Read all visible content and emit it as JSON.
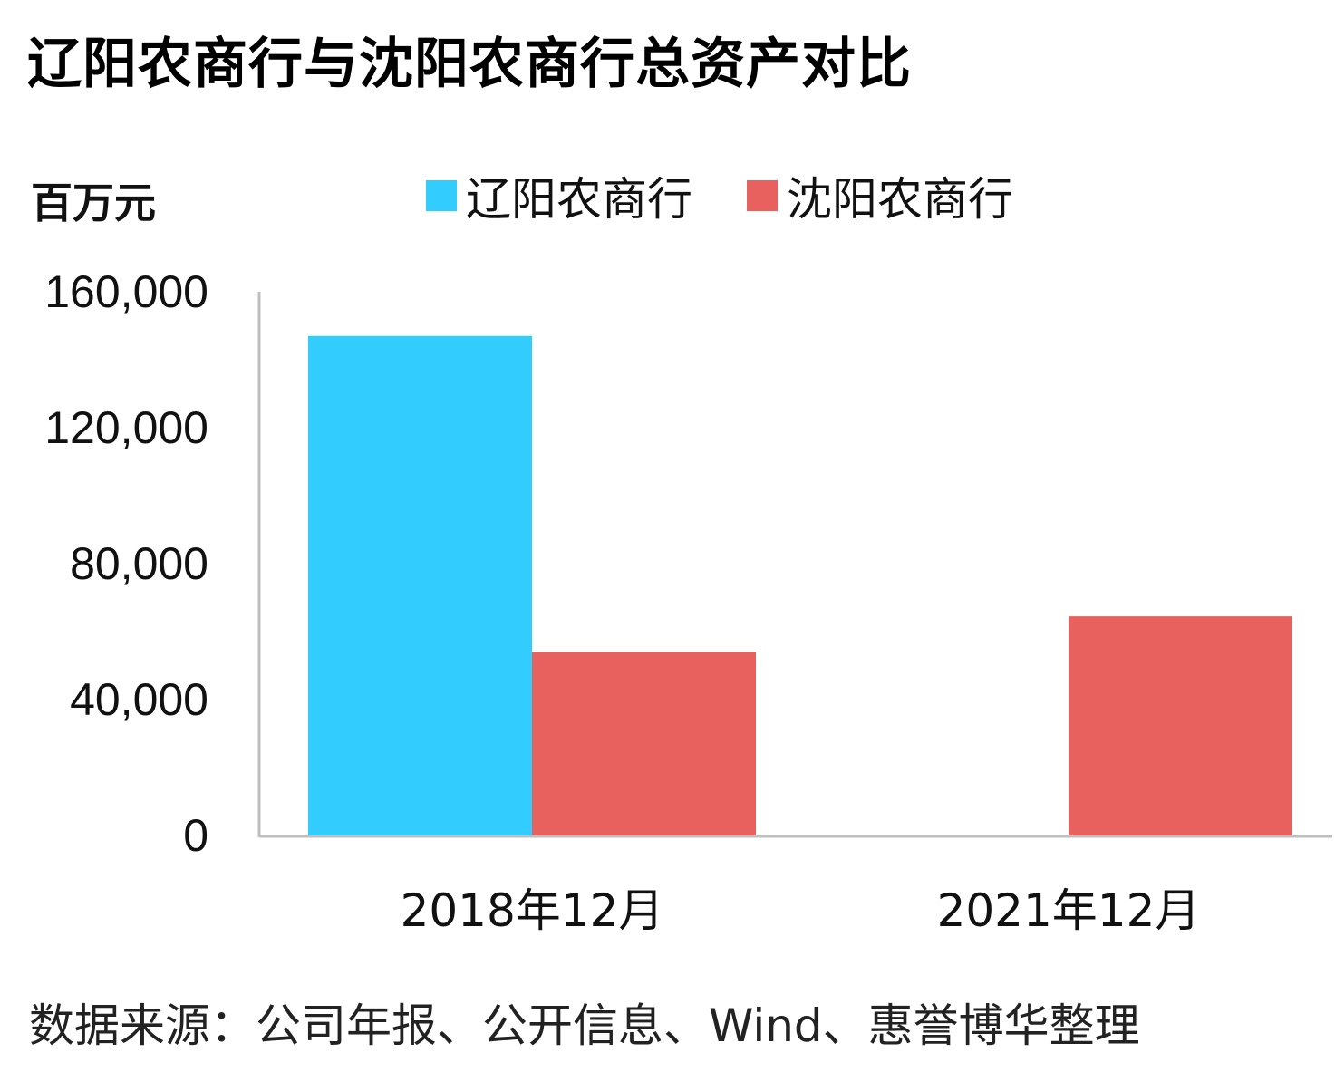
{
  "chart_data": {
    "type": "bar",
    "title": "辽阳农商行与沈阳农商行总资产对比",
    "unit_label": "百万元",
    "categories": [
      "2018年12月",
      "2021年12月"
    ],
    "series": [
      {
        "name": "辽阳农商行",
        "color": "#33ccff",
        "values": [
          147000,
          null
        ]
      },
      {
        "name": "沈阳农商行",
        "color": "#e8615e",
        "values": [
          54000,
          64500
        ]
      }
    ],
    "ylim": [
      0,
      160000
    ],
    "yticks": [
      0,
      40000,
      80000,
      120000,
      160000
    ],
    "ytick_labels": [
      "0",
      "40,000",
      "80,000",
      "120,000",
      "160,000"
    ],
    "grid": false,
    "legend_position": "top"
  },
  "source_note": "数据来源：公司年报、公开信息、Wind、惠誉博华整理"
}
